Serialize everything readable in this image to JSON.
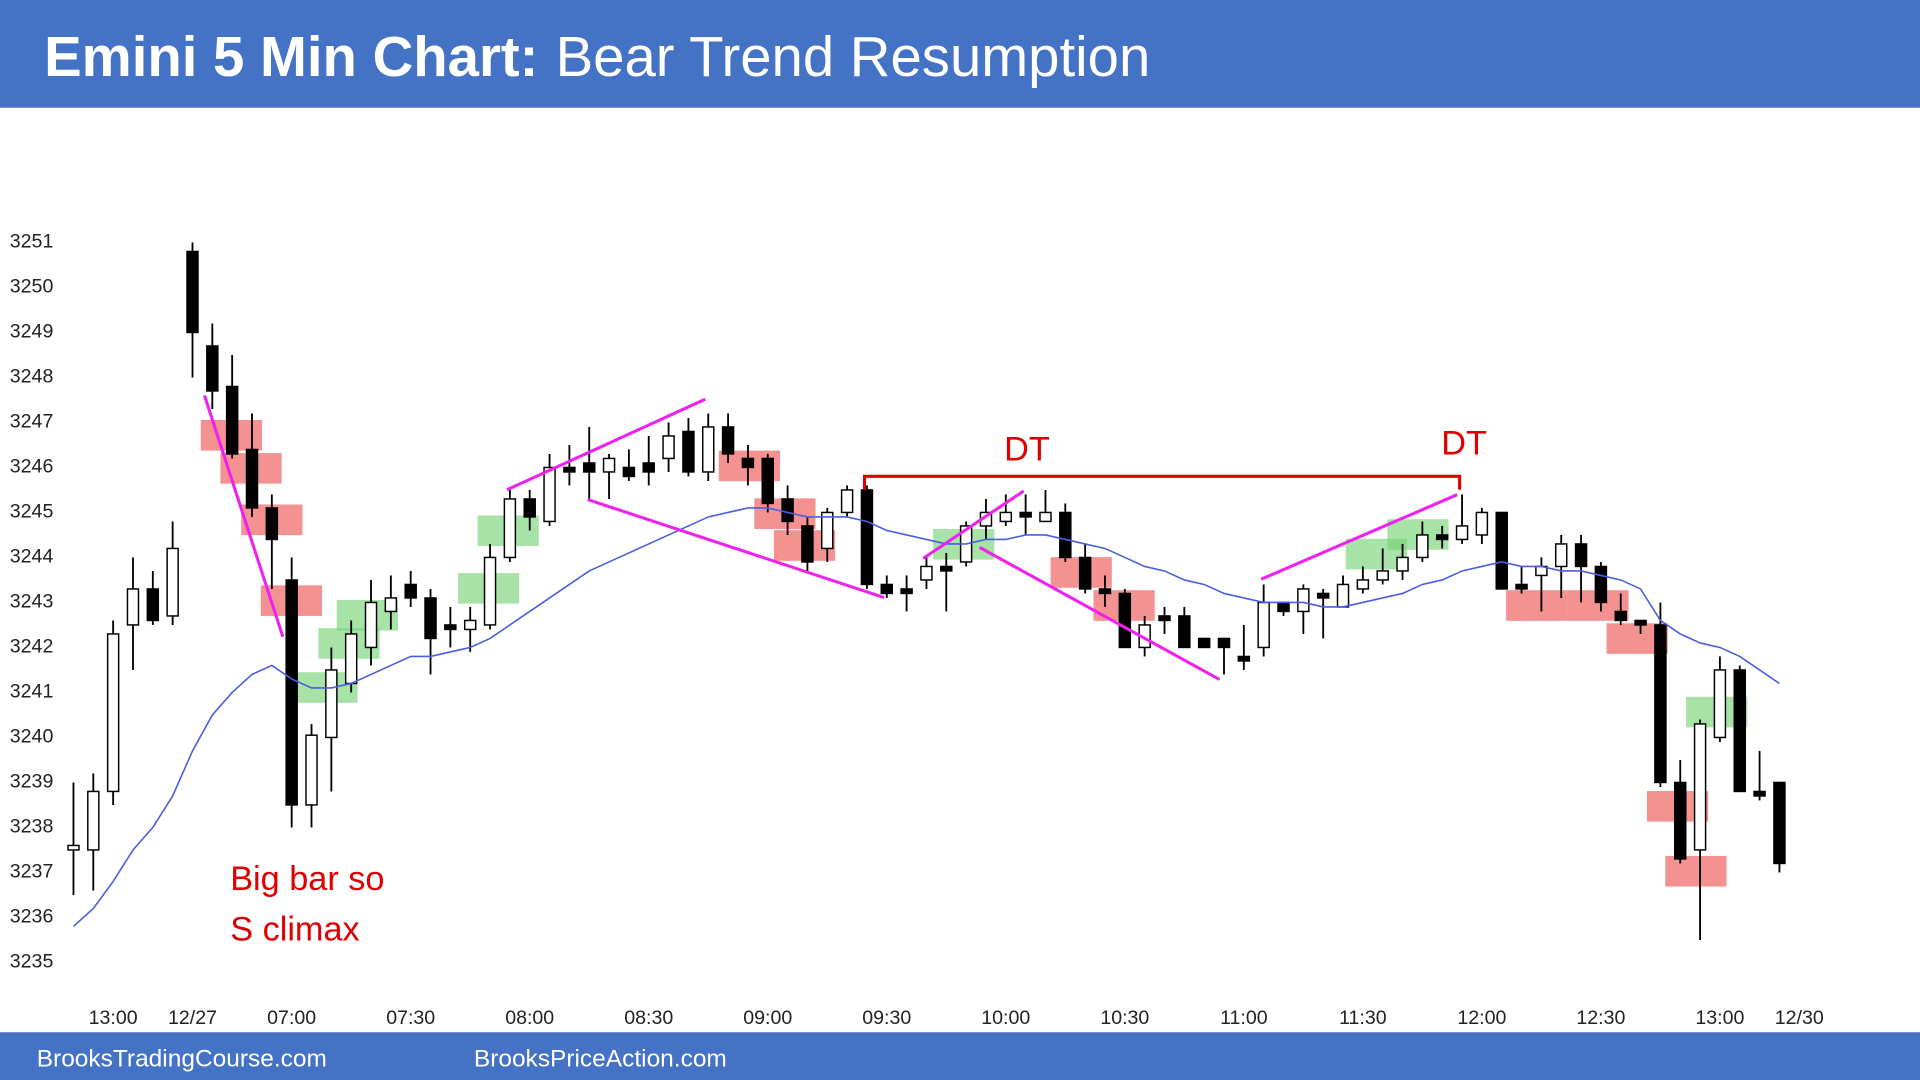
{
  "chart_data": {
    "type": "candlestick",
    "title": "Emini 5 Min Chart:",
    "subtitle": "Bear Trend Resumption",
    "footer_left": "BrooksTradingCourse.com",
    "footer_right": "BrooksPriceAction.com",
    "annotations": [
      "DT",
      "DT",
      "Big bar so",
      "S climax"
    ],
    "ylim": [
      3235,
      3251
    ],
    "yticks": [
      3235,
      3236,
      3237,
      3238,
      3239,
      3240,
      3241,
      3242,
      3243,
      3244,
      3245,
      3246,
      3247,
      3248,
      3249,
      3250,
      3251
    ],
    "categories": [
      null,
      null,
      "13:00",
      null,
      null,
      null,
      "12/27",
      null,
      null,
      null,
      null,
      "07:00",
      null,
      null,
      null,
      null,
      null,
      "07:30",
      null,
      null,
      null,
      null,
      null,
      "08:00",
      null,
      null,
      null,
      null,
      null,
      "08:30",
      null,
      null,
      null,
      null,
      null,
      "09:00",
      null,
      null,
      null,
      null,
      null,
      "09:30",
      null,
      null,
      null,
      null,
      null,
      "10:00",
      null,
      null,
      null,
      null,
      null,
      "10:30",
      null,
      null,
      null,
      null,
      null,
      "11:00",
      null,
      null,
      null,
      null,
      null,
      "11:30",
      null,
      null,
      null,
      null,
      null,
      "12:00",
      null,
      null,
      null,
      null,
      null,
      "12:30",
      null,
      null,
      null,
      null,
      null,
      "13:00",
      null,
      null,
      null,
      "12/30"
    ],
    "open": [
      3237.5,
      3237.5,
      3238.8,
      3242.5,
      3243.3,
      3242.7,
      3250.8,
      3248.7,
      3247.8,
      3246.4,
      3245.1,
      3243.5,
      3238.5,
      3240.0,
      3241.2,
      3242.0,
      3242.8,
      3243.4,
      3243.1,
      3242.5,
      3242.4,
      3242.5,
      3244.0,
      3245.3,
      3244.8,
      3246.0,
      3246.1,
      3245.9,
      3246.0,
      3246.1,
      3246.2,
      3246.8,
      3245.9,
      3246.9,
      3246.2,
      3246.2,
      3245.3,
      3244.7,
      3244.2,
      3245.0,
      3245.5,
      3243.4,
      3243.3,
      3243.5,
      3243.8,
      3243.9,
      3244.7,
      3244.8,
      3245.0,
      3244.8,
      3245.0,
      3244.0,
      3243.3,
      3243.2,
      3242.0,
      3242.7,
      3242.7,
      3242.2,
      3242.2,
      3241.8,
      3242.0,
      3243.0,
      3242.8,
      3243.2,
      3242.9,
      3243.3,
      3243.5,
      3243.7,
      3244.0,
      3244.5,
      3244.4,
      3244.5,
      3245.0,
      3243.4,
      3243.6,
      3243.8,
      3244.3,
      3243.8,
      3242.8,
      3242.6,
      3242.5,
      3239.0,
      3237.5,
      3240.0,
      3241.5,
      3238.8,
      3239.0,
      null
    ],
    "high": [
      3239.0,
      3239.2,
      3242.6,
      3244.0,
      3243.7,
      3244.8,
      3251.0,
      3249.2,
      3248.5,
      3247.2,
      3245.4,
      3244.0,
      3240.3,
      3242.0,
      3242.6,
      3243.5,
      3243.6,
      3243.7,
      3243.3,
      3242.9,
      3242.9,
      3244.3,
      3245.5,
      3245.5,
      3246.3,
      3246.5,
      3246.9,
      3246.3,
      3246.4,
      3246.7,
      3247.0,
      3247.1,
      3247.2,
      3247.2,
      3246.5,
      3246.3,
      3245.6,
      3244.9,
      3245.1,
      3245.6,
      3245.6,
      3243.6,
      3243.6,
      3244.0,
      3244.1,
      3244.8,
      3245.3,
      3245.4,
      3245.4,
      3245.5,
      3245.2,
      3244.3,
      3243.6,
      3243.3,
      3242.7,
      3242.9,
      3242.9,
      3242.2,
      3242.2,
      3242.5,
      3243.4,
      3243.0,
      3243.4,
      3243.3,
      3243.6,
      3243.8,
      3244.2,
      3244.3,
      3244.8,
      3244.7,
      3245.4,
      3245.1,
      3245.0,
      3243.8,
      3244.0,
      3244.5,
      3244.5,
      3243.9,
      3243.2,
      3242.6,
      3243.0,
      3239.5,
      3240.4,
      3241.8,
      3241.6,
      3239.7,
      3239.0,
      null
    ],
    "low": [
      3236.5,
      3236.6,
      3238.5,
      3241.5,
      3242.5,
      3242.5,
      3248.0,
      3247.3,
      3246.2,
      3244.9,
      3243.3,
      3238.0,
      3238.0,
      3238.8,
      3241.0,
      3241.6,
      3242.4,
      3242.9,
      3241.4,
      3242.0,
      3241.9,
      3242.4,
      3243.9,
      3244.6,
      3244.7,
      3245.6,
      3245.3,
      3245.3,
      3245.7,
      3245.6,
      3245.9,
      3245.8,
      3245.7,
      3246.1,
      3245.6,
      3245.0,
      3244.5,
      3243.7,
      3243.9,
      3244.9,
      3243.3,
      3243.1,
      3242.8,
      3243.3,
      3242.8,
      3243.8,
      3244.4,
      3244.7,
      3244.5,
      3244.8,
      3243.9,
      3243.2,
      3242.9,
      3242.0,
      3241.8,
      3242.3,
      3242.0,
      3242.0,
      3241.4,
      3241.5,
      3241.8,
      3242.7,
      3242.3,
      3242.2,
      3242.9,
      3243.2,
      3243.4,
      3243.5,
      3243.9,
      3244.2,
      3244.3,
      3244.3,
      3243.3,
      3243.2,
      3242.8,
      3243.1,
      3243.0,
      3242.8,
      3242.5,
      3242.3,
      3238.9,
      3237.2,
      3235.5,
      3239.9,
      3238.8,
      3238.6,
      3237.0,
      null
    ],
    "close": [
      3237.6,
      3238.8,
      3242.3,
      3243.3,
      3242.6,
      3244.2,
      3249.0,
      3247.7,
      3246.3,
      3245.1,
      3244.4,
      3238.5,
      3240.05,
      3241.5,
      3242.3,
      3243.0,
      3243.1,
      3243.1,
      3242.2,
      3242.4,
      3242.6,
      3244.0,
      3245.3,
      3244.9,
      3246.0,
      3245.9,
      3245.9,
      3246.2,
      3245.8,
      3245.9,
      3246.7,
      3245.9,
      3246.9,
      3246.3,
      3246.0,
      3245.2,
      3244.8,
      3243.9,
      3245.0,
      3245.5,
      3243.4,
      3243.2,
      3243.2,
      3243.8,
      3243.7,
      3244.7,
      3245.0,
      3245.0,
      3244.9,
      3245.0,
      3244.0,
      3243.3,
      3243.2,
      3242.0,
      3242.5,
      3242.6,
      3242.0,
      3242.0,
      3242.0,
      3241.7,
      3243.0,
      3242.8,
      3243.3,
      3243.1,
      3243.4,
      3243.5,
      3243.7,
      3244.0,
      3244.5,
      3244.4,
      3244.7,
      3245.0,
      3243.3,
      3243.3,
      3243.8,
      3244.3,
      3243.8,
      3243.0,
      3242.6,
      3242.5,
      3239.0,
      3237.3,
      3240.3,
      3241.5,
      3238.8,
      3238.7,
      3237.2,
      null
    ],
    "ema": {
      "color": "#4a5ee0",
      "values": [
        3235.8,
        3236.2,
        3236.8,
        3237.5,
        3238.0,
        3238.7,
        3239.7,
        3240.5,
        3241.0,
        3241.4,
        3241.6,
        3241.3,
        3241.1,
        3241.1,
        3241.2,
        3241.4,
        3241.6,
        3241.8,
        3241.8,
        3241.9,
        3242.0,
        3242.2,
        3242.5,
        3242.8,
        3243.1,
        3243.4,
        3243.7,
        3243.9,
        3244.1,
        3244.3,
        3244.5,
        3244.7,
        3244.9,
        3245.0,
        3245.1,
        3245.1,
        3245.0,
        3244.9,
        3244.9,
        3244.9,
        3244.8,
        3244.6,
        3244.5,
        3244.4,
        3244.3,
        3244.3,
        3244.4,
        3244.4,
        3244.5,
        3244.5,
        3244.4,
        3244.3,
        3244.2,
        3244.0,
        3243.8,
        3243.7,
        3243.5,
        3243.4,
        3243.2,
        3243.1,
        3243.0,
        3243.0,
        3243.0,
        3242.9,
        3242.9,
        3243.0,
        3243.1,
        3243.2,
        3243.4,
        3243.5,
        3243.7,
        3243.8,
        3243.9,
        3243.8,
        3243.8,
        3243.7,
        3243.7,
        3243.6,
        3243.5,
        3243.3,
        3242.6,
        3242.3,
        3242.1,
        3242.0,
        3241.8,
        3241.5,
        3241.2,
        null
      ]
    },
    "up_color": "#ffffff",
    "down_color": "#000000"
  }
}
